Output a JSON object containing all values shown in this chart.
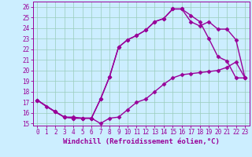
{
  "xlabel": "Windchill (Refroidissement éolien,°C)",
  "bg_color": "#cceeff",
  "grid_color": "#99ccbb",
  "line_color": "#990099",
  "xlim": [
    -0.5,
    23.5
  ],
  "ylim": [
    14.8,
    26.5
  ],
  "xticks": [
    0,
    1,
    2,
    3,
    4,
    5,
    6,
    7,
    8,
    9,
    10,
    11,
    12,
    13,
    14,
    15,
    16,
    17,
    18,
    19,
    20,
    21,
    22,
    23
  ],
  "yticks": [
    15,
    16,
    17,
    18,
    19,
    20,
    21,
    22,
    23,
    24,
    25,
    26
  ],
  "line1_x": [
    0,
    1,
    2,
    3,
    4,
    5,
    6,
    7,
    8,
    9,
    10,
    11,
    12,
    13,
    14,
    15,
    16,
    17,
    18,
    19,
    20,
    21,
    22,
    23
  ],
  "line1_y": [
    17.2,
    16.6,
    16.1,
    15.6,
    15.6,
    15.5,
    15.5,
    15.0,
    15.5,
    15.6,
    16.3,
    17.0,
    17.3,
    18.0,
    18.7,
    19.3,
    19.6,
    19.7,
    19.8,
    19.9,
    20.0,
    20.3,
    20.8,
    19.3
  ],
  "line2_x": [
    0,
    2,
    3,
    4,
    5,
    6,
    7,
    8,
    9,
    10,
    11,
    12,
    13,
    14,
    15,
    16,
    17,
    18,
    19,
    20,
    21,
    22,
    23
  ],
  "line2_y": [
    17.2,
    16.1,
    15.6,
    15.5,
    15.5,
    15.5,
    17.3,
    19.4,
    22.2,
    22.9,
    23.3,
    23.8,
    24.6,
    24.9,
    25.8,
    25.8,
    24.6,
    24.2,
    24.6,
    23.9,
    23.9,
    22.9,
    19.3
  ],
  "line3_x": [
    0,
    2,
    3,
    4,
    5,
    6,
    7,
    8,
    9,
    10,
    11,
    12,
    13,
    14,
    15,
    16,
    17,
    18,
    19,
    20,
    21,
    22,
    23
  ],
  "line3_y": [
    17.2,
    16.1,
    15.6,
    15.5,
    15.5,
    15.5,
    17.3,
    19.4,
    22.2,
    22.9,
    23.3,
    23.8,
    24.6,
    24.9,
    25.8,
    25.8,
    25.2,
    24.6,
    23.0,
    21.3,
    20.9,
    19.3,
    19.3
  ],
  "marker": "D",
  "markersize": 2.5,
  "linewidth": 1.0,
  "tick_fontsize": 5.5,
  "label_fontsize": 6.5
}
